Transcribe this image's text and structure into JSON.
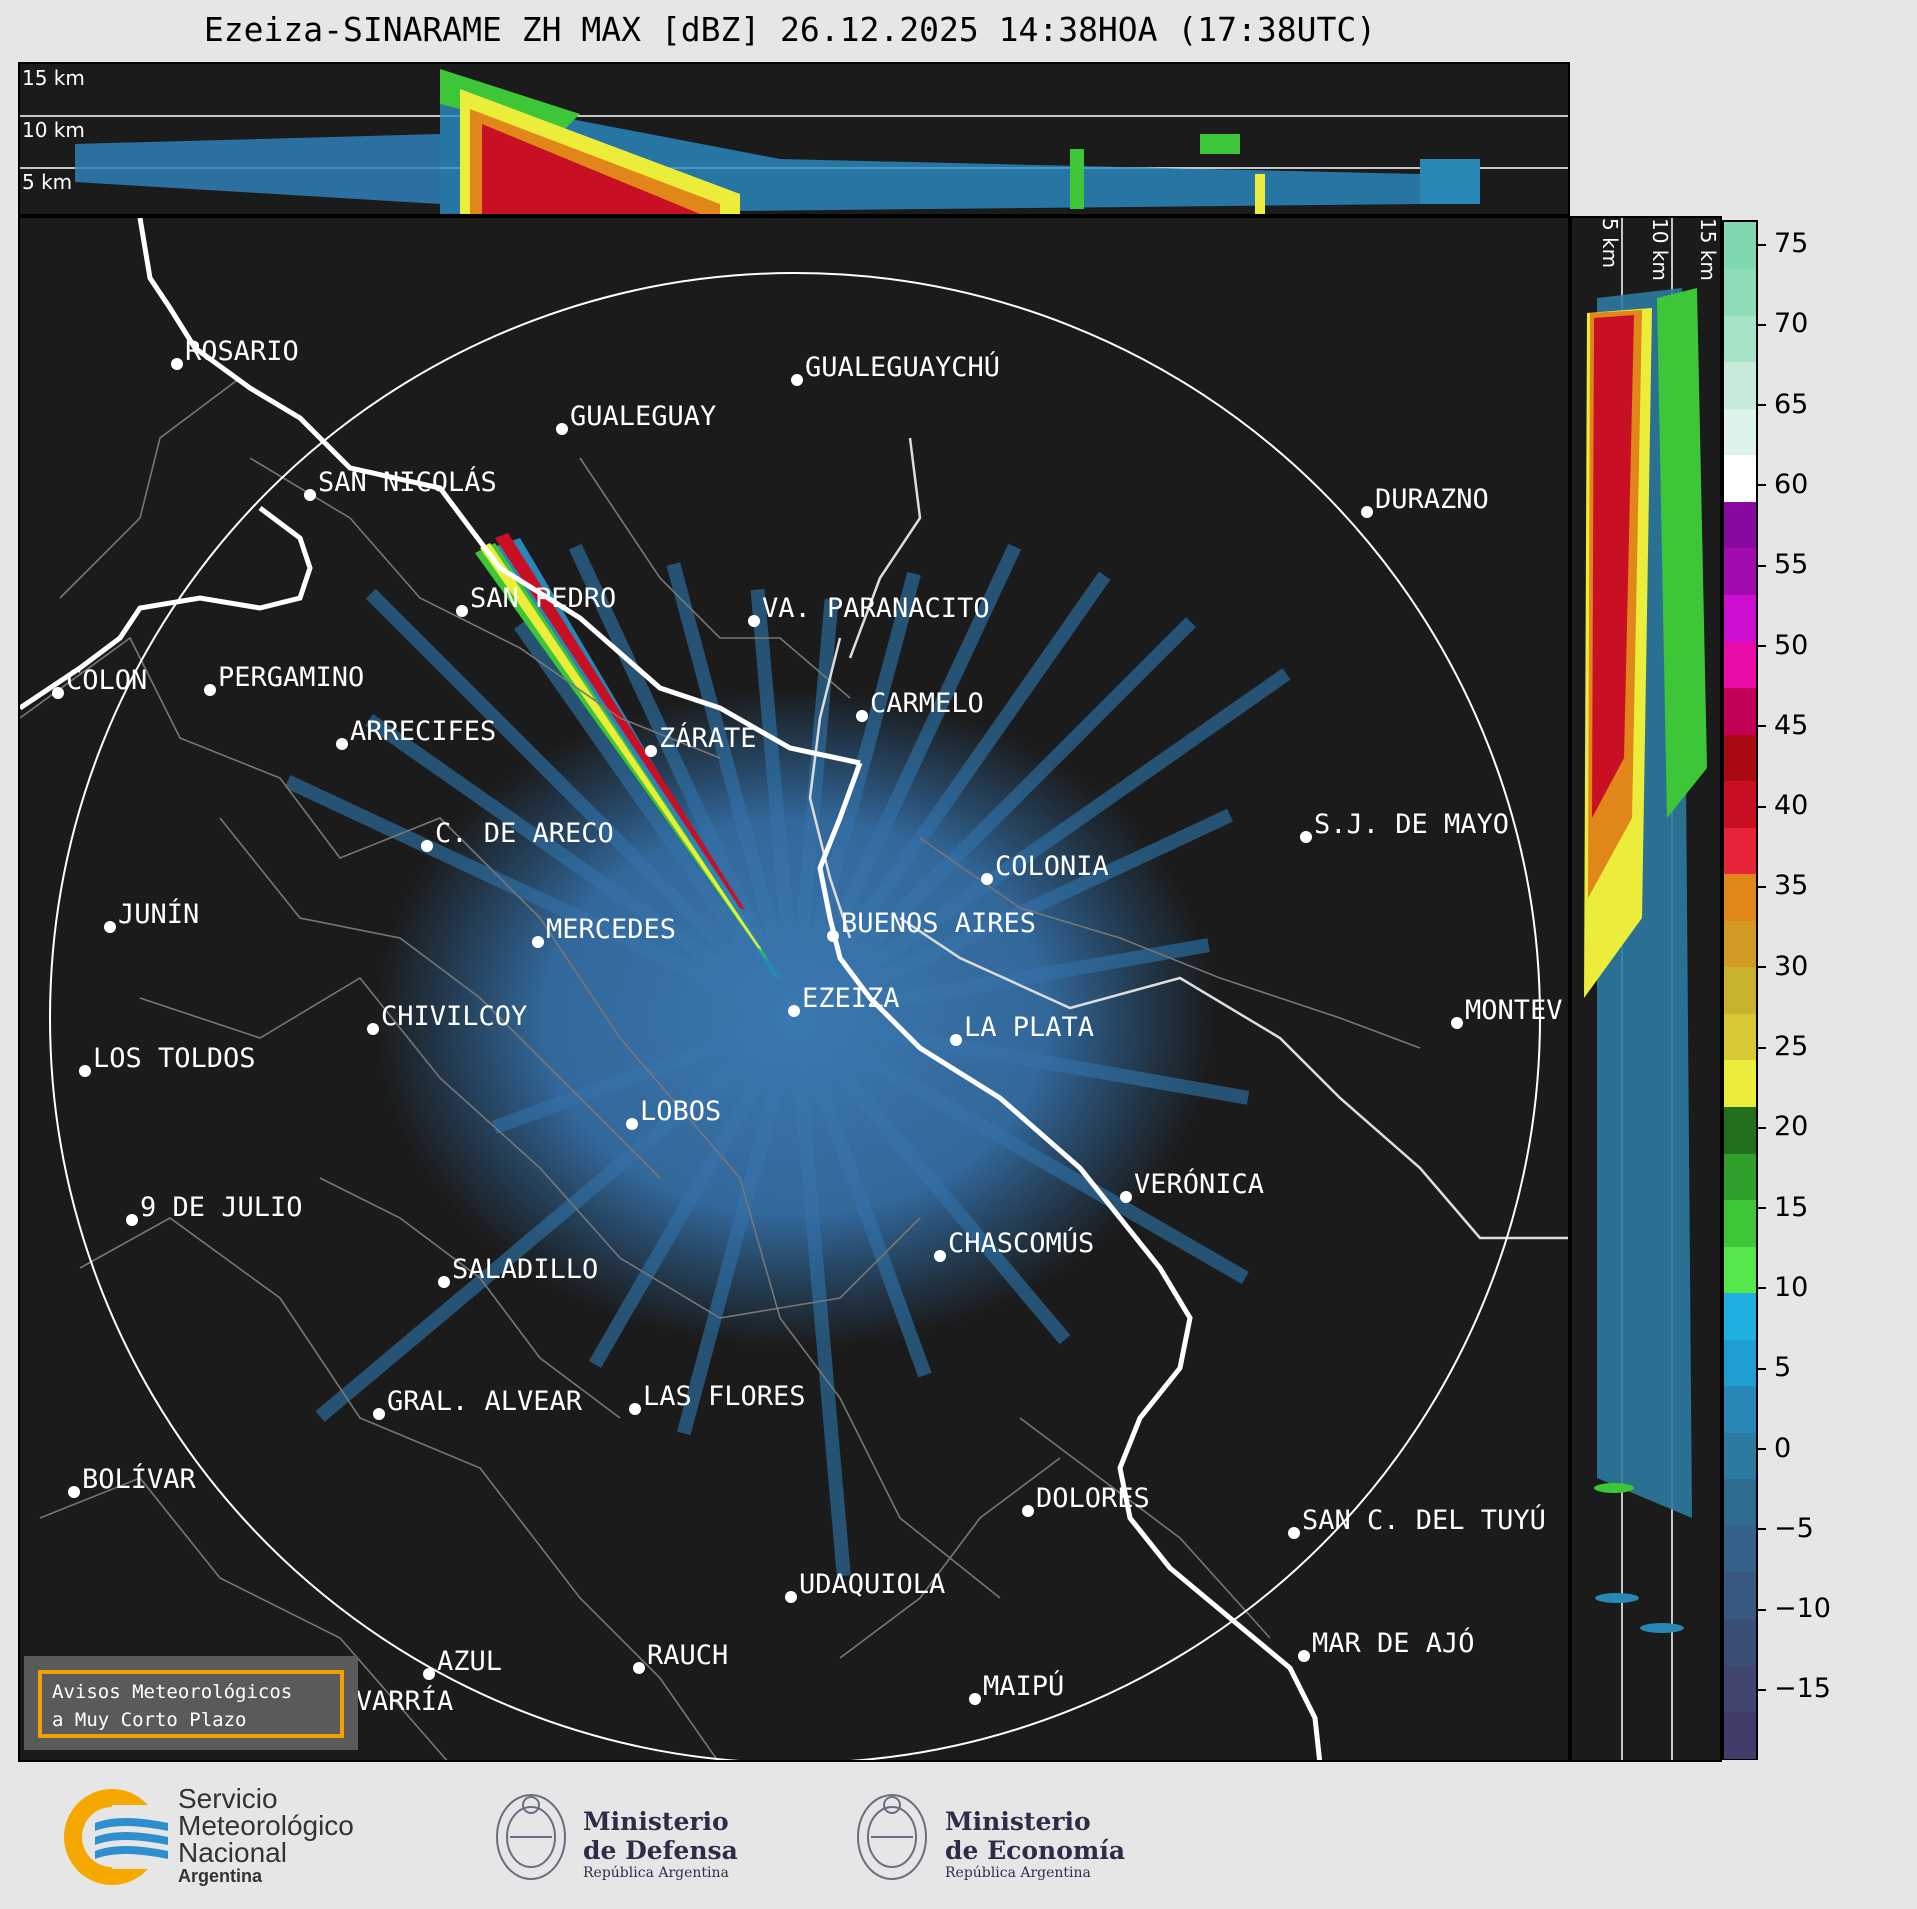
{
  "title": "Ezeiza-SINARAME ZH MAX [dBZ] 26.12.2025 14:38HOA (17:38UTC)",
  "top_panel": {
    "height_labels": [
      "15 km",
      "10 km",
      "5 km"
    ]
  },
  "side_panel": {
    "height_labels": [
      "5 km",
      "10 km",
      "15 km"
    ]
  },
  "colorbar": {
    "ticks": [
      "75",
      "70",
      "65",
      "60",
      "55",
      "50",
      "45",
      "40",
      "35",
      "30",
      "25",
      "20",
      "15",
      "10",
      "5",
      "0",
      "−5",
      "−10",
      "−15"
    ],
    "colors": [
      "#3f3d6a",
      "#41456f",
      "#3b4e78",
      "#395880",
      "#356288",
      "#306c90",
      "#2b7aa0",
      "#2887b4",
      "#1f9ed2",
      "#1fb0e0",
      "#56e84a",
      "#3ec639",
      "#2fa02c",
      "#226e1f",
      "#ecec3a",
      "#d8c834",
      "#c9b22e",
      "#d39a24",
      "#e18618",
      "#e8243a",
      "#c80f24",
      "#a80a10",
      "#c20058",
      "#ea0ca8",
      "#cc0fd0",
      "#a00cb0",
      "#8a0aa0",
      "#ffffff",
      "#def3e9",
      "#c6ecd9",
      "#a7e3c7",
      "#8edbb8",
      "#7fd7b0"
    ]
  },
  "map": {
    "cities": [
      {
        "name": "ROSARIO"
      },
      {
        "name": "GUALEGUAYCHÚ"
      },
      {
        "name": "GUALEGUAY"
      },
      {
        "name": "SAN NICOLÁS"
      },
      {
        "name": "DURAZNO"
      },
      {
        "name": "SAN PEDRO"
      },
      {
        "name": "VA. PARANACITO"
      },
      {
        "name": "COLON"
      },
      {
        "name": "PERGAMINO"
      },
      {
        "name": "CARMELO"
      },
      {
        "name": "ARRECIFES"
      },
      {
        "name": "ZÁRATE"
      },
      {
        "name": "S.J. DE MAYO"
      },
      {
        "name": "C. DE ARECO"
      },
      {
        "name": "COLONIA"
      },
      {
        "name": "JUNÍN"
      },
      {
        "name": "BUENOS AIRES"
      },
      {
        "name": "MERCEDES"
      },
      {
        "name": "MONTEV"
      },
      {
        "name": "EZEIZA"
      },
      {
        "name": "CHIVILCOY"
      },
      {
        "name": "LA PLATA"
      },
      {
        "name": "LOS TOLDOS"
      },
      {
        "name": "LOBOS"
      },
      {
        "name": "VERÓNICA"
      },
      {
        "name": "9 DE JULIO"
      },
      {
        "name": "CHASCOMÚS"
      },
      {
        "name": "SALADILLO"
      },
      {
        "name": "GRAL. ALVEAR"
      },
      {
        "name": "LAS FLORES"
      },
      {
        "name": "BOLÍVAR"
      },
      {
        "name": "DOLORES"
      },
      {
        "name": "SAN C. DEL TUYÚ"
      },
      {
        "name": "UDAQUIOLA"
      },
      {
        "name": "MAR DE AJÓ"
      },
      {
        "name": "AZUL"
      },
      {
        "name": "RAUCH"
      },
      {
        "name": "MAIPÚ"
      },
      {
        "name": "OLAVARRÍA"
      }
    ],
    "warning_box": [
      "Avisos Meteorológicos",
      "a Muy Corto Plazo"
    ]
  },
  "footer": {
    "smn": [
      "Servicio",
      "Meteorológico",
      "Nacional",
      "Argentina"
    ],
    "defensa": [
      "Ministerio",
      "de Defensa",
      "República Argentina"
    ],
    "economia": [
      "Ministerio",
      "de Economía",
      "República Argentina"
    ]
  }
}
